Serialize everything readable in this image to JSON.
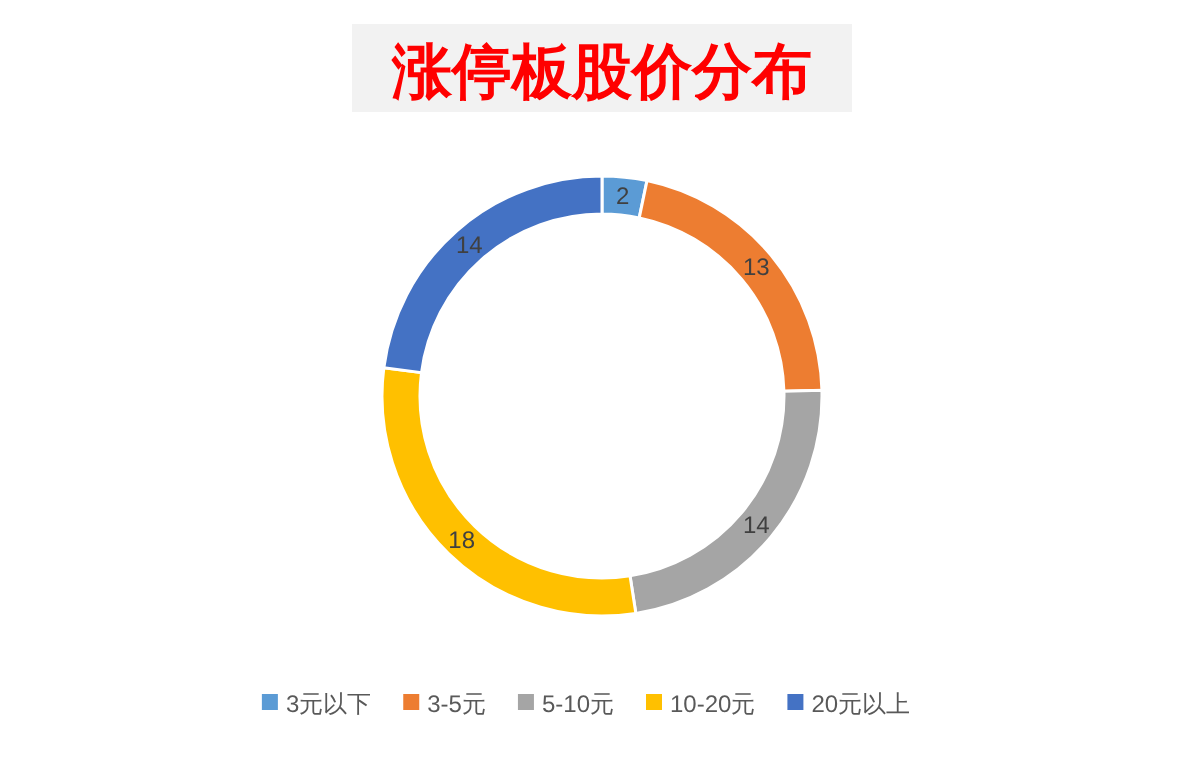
{
  "chart_data": {
    "type": "donut",
    "title": "涨停板股价分布",
    "categories": [
      "3元以下",
      "3-5元",
      "5-10元",
      "10-20元",
      "20元以上"
    ],
    "values": [
      2,
      13,
      14,
      18,
      14
    ],
    "colors": [
      "#5b9bd5",
      "#ed7d31",
      "#a5a5a5",
      "#ffc000",
      "#4472c4"
    ],
    "data_labels": true,
    "legend": "bottom"
  }
}
